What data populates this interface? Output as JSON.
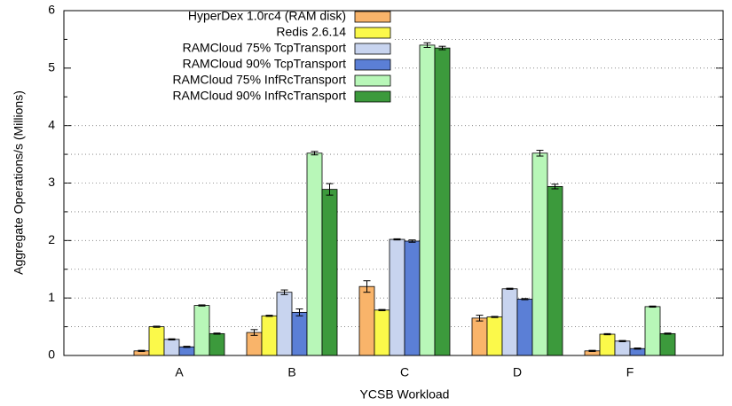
{
  "chart_data": {
    "type": "bar",
    "xlabel": "YCSB Workload",
    "ylabel": "Aggregate Operations/s (Millions)",
    "categories": [
      "A",
      "B",
      "C",
      "D",
      "F"
    ],
    "series": [
      {
        "name": "HyperDex 1.0rc4 (RAM disk)",
        "color": "#f9b46a",
        "values": [
          0.08,
          0.4,
          1.2,
          0.65,
          0.08
        ],
        "errors": [
          0.01,
          0.05,
          0.1,
          0.05,
          0.01
        ]
      },
      {
        "name": "Redis 2.6.14",
        "color": "#fbf94a",
        "values": [
          0.5,
          0.69,
          0.79,
          0.67,
          0.37
        ],
        "errors": [
          0.01,
          0.01,
          0.01,
          0.01,
          0.01
        ]
      },
      {
        "name": "RAMCloud 75% TcpTransport",
        "color": "#c8d4ef",
        "values": [
          0.28,
          1.1,
          2.02,
          1.16,
          0.25
        ],
        "errors": [
          0.01,
          0.04,
          0.01,
          0.01,
          0.01
        ]
      },
      {
        "name": "RAMCloud 90% TcpTransport",
        "color": "#5b7fd6",
        "values": [
          0.15,
          0.75,
          1.99,
          0.98,
          0.12
        ],
        "errors": [
          0.01,
          0.06,
          0.02,
          0.01,
          0.01
        ]
      },
      {
        "name": "RAMCloud 75% InfRcTransport",
        "color": "#b8f7b8",
        "values": [
          0.87,
          3.52,
          5.4,
          3.52,
          0.85
        ],
        "errors": [
          0.01,
          0.03,
          0.04,
          0.05,
          0.01
        ]
      },
      {
        "name": "RAMCloud 90% InfRcTransport",
        "color": "#3c9a3c",
        "values": [
          0.38,
          2.89,
          5.35,
          2.94,
          0.38
        ],
        "errors": [
          0.01,
          0.1,
          0.03,
          0.04,
          0.01
        ]
      }
    ],
    "ylim": [
      0,
      6
    ],
    "yticks": [
      0,
      1,
      2,
      3,
      4,
      5,
      6
    ],
    "minor_yticks": [
      0.5,
      1.5,
      2.5,
      3.5,
      4.5,
      5.5
    ],
    "grid": true,
    "legend": "top-left"
  }
}
